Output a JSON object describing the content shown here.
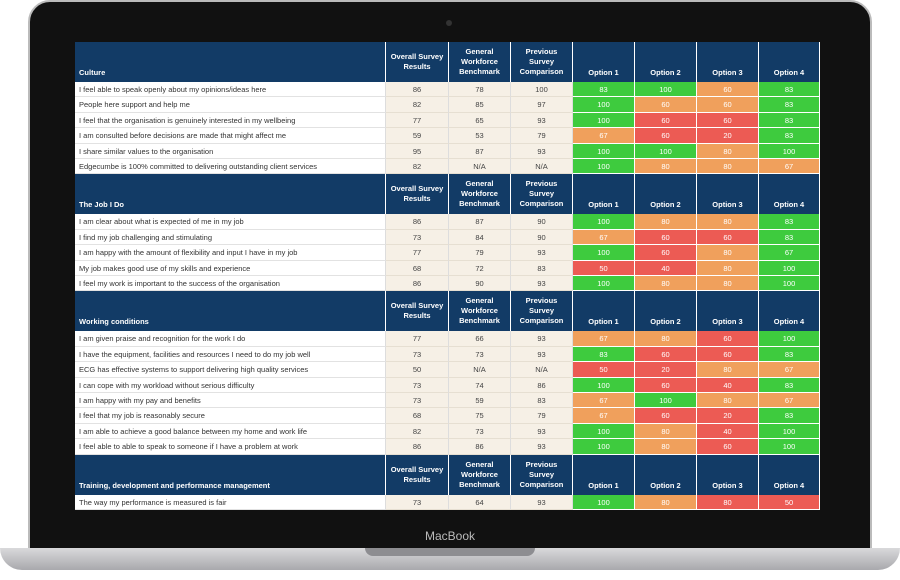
{
  "device_label": "MacBook",
  "column_headers": [
    "Overall Survey Results",
    "General Workforce Benchmark",
    "Previous Survey Comparison",
    "Option 1",
    "Option 2",
    "Option 3",
    "Option 4"
  ],
  "sections": [
    {
      "title": "Culture",
      "rows": [
        {
          "question": "I feel able to speak openly about my opinions/ideas here",
          "scores": [
            86,
            78,
            100
          ],
          "options": [
            83,
            100,
            60,
            83
          ],
          "option_colors": [
            "#3ecb3e",
            "#3ecb3e",
            "#f0a05c",
            "#3ecb3e"
          ]
        },
        {
          "question": "People here support and help me",
          "scores": [
            82,
            85,
            97
          ],
          "options": [
            100,
            60,
            60,
            83
          ],
          "option_colors": [
            "#3ecb3e",
            "#f0a05c",
            "#f0a05c",
            "#3ecb3e"
          ]
        },
        {
          "question": "I feel that the organisation is genuinely interested in my wellbeing",
          "scores": [
            77,
            65,
            93
          ],
          "options": [
            100,
            60,
            60,
            83
          ],
          "option_colors": [
            "#3ecb3e",
            "#ec5b54",
            "#ec5b54",
            "#3ecb3e"
          ]
        },
        {
          "question": "I am consulted before decisions are made that might affect me",
          "scores": [
            59,
            53,
            79
          ],
          "options": [
            67,
            60,
            20,
            83
          ],
          "option_colors": [
            "#f0a05c",
            "#ec5b54",
            "#ec5b54",
            "#3ecb3e"
          ]
        },
        {
          "question": "I share similar values to the organisation",
          "scores": [
            95,
            87,
            93
          ],
          "options": [
            100,
            100,
            80,
            100
          ],
          "option_colors": [
            "#3ecb3e",
            "#3ecb3e",
            "#f0a05c",
            "#3ecb3e"
          ]
        },
        {
          "question": "Edgecumbe is 100% committed to delivering outstanding client services",
          "scores": [
            82,
            "N/A",
            "N/A"
          ],
          "options": [
            100,
            80,
            80,
            67
          ],
          "option_colors": [
            "#3ecb3e",
            "#f0a05c",
            "#f0a05c",
            "#f0a05c"
          ]
        }
      ]
    },
    {
      "title": "The Job I Do",
      "rows": [
        {
          "question": "I am clear about what is expected of me in my job",
          "scores": [
            86,
            87,
            90
          ],
          "options": [
            100,
            80,
            80,
            83
          ],
          "option_colors": [
            "#3ecb3e",
            "#f0a05c",
            "#f0a05c",
            "#3ecb3e"
          ]
        },
        {
          "question": "I find my job challenging and stimulating",
          "scores": [
            73,
            84,
            90
          ],
          "options": [
            67,
            60,
            60,
            83
          ],
          "option_colors": [
            "#f0a05c",
            "#ec5b54",
            "#ec5b54",
            "#3ecb3e"
          ]
        },
        {
          "question": "I am happy with the amount of flexibility and input I have in my job",
          "scores": [
            77,
            79,
            93
          ],
          "options": [
            100,
            60,
            80,
            67
          ],
          "option_colors": [
            "#3ecb3e",
            "#ec5b54",
            "#f0a05c",
            "#3ecb3e"
          ]
        },
        {
          "question": "My job makes good use of my skills and experience",
          "scores": [
            68,
            72,
            83
          ],
          "options": [
            50,
            40,
            80,
            100
          ],
          "option_colors": [
            "#ec5b54",
            "#ec5b54",
            "#f0a05c",
            "#3ecb3e"
          ]
        },
        {
          "question": "I feel my work is important to the success of the organisation",
          "scores": [
            86,
            90,
            93
          ],
          "options": [
            100,
            80,
            80,
            100
          ],
          "option_colors": [
            "#3ecb3e",
            "#f0a05c",
            "#f0a05c",
            "#3ecb3e"
          ]
        }
      ]
    },
    {
      "title": "Working conditions",
      "rows": [
        {
          "question": "I am given praise and recognition for the work I do",
          "scores": [
            77,
            66,
            93
          ],
          "options": [
            67,
            80,
            60,
            100
          ],
          "option_colors": [
            "#f0a05c",
            "#f0a05c",
            "#ec5b54",
            "#3ecb3e"
          ]
        },
        {
          "question": "I have the equipment, facilities and resources I need to do my job well",
          "scores": [
            73,
            73,
            93
          ],
          "options": [
            83,
            60,
            60,
            83
          ],
          "option_colors": [
            "#3ecb3e",
            "#ec5b54",
            "#ec5b54",
            "#3ecb3e"
          ]
        },
        {
          "question": "ECG has effective systems to support delivering high quality services",
          "scores": [
            50,
            "N/A",
            "N/A"
          ],
          "options": [
            50,
            20,
            80,
            67
          ],
          "option_colors": [
            "#ec5b54",
            "#ec5b54",
            "#f0a05c",
            "#f0a05c"
          ]
        },
        {
          "question": "I can cope with my workload without serious difficulty",
          "scores": [
            73,
            74,
            86
          ],
          "options": [
            100,
            60,
            40,
            83
          ],
          "option_colors": [
            "#3ecb3e",
            "#ec5b54",
            "#ec5b54",
            "#3ecb3e"
          ]
        },
        {
          "question": "I am happy with my pay and benefits",
          "scores": [
            73,
            59,
            83
          ],
          "options": [
            67,
            100,
            80,
            67
          ],
          "option_colors": [
            "#f0a05c",
            "#3ecb3e",
            "#f0a05c",
            "#f0a05c"
          ]
        },
        {
          "question": "I feel that my job is reasonably secure",
          "scores": [
            68,
            75,
            79
          ],
          "options": [
            67,
            60,
            20,
            83
          ],
          "option_colors": [
            "#f0a05c",
            "#ec5b54",
            "#ec5b54",
            "#3ecb3e"
          ]
        },
        {
          "question": "I am able to achieve a good balance between my home and work life",
          "scores": [
            82,
            73,
            93
          ],
          "options": [
            100,
            80,
            40,
            100
          ],
          "option_colors": [
            "#3ecb3e",
            "#f0a05c",
            "#ec5b54",
            "#3ecb3e"
          ]
        },
        {
          "question": "I feel able to able to speak to someone if I have a problem at work",
          "scores": [
            86,
            86,
            93
          ],
          "options": [
            100,
            80,
            60,
            100
          ],
          "option_colors": [
            "#3ecb3e",
            "#f0a05c",
            "#ec5b54",
            "#3ecb3e"
          ]
        }
      ]
    },
    {
      "title": "Training, development and performance management",
      "rows": [
        {
          "question": "The way my performance is measured is fair",
          "scores": [
            73,
            64,
            93
          ],
          "options": [
            100,
            80,
            80,
            50
          ],
          "option_colors": [
            "#3ecb3e",
            "#f0a05c",
            "#ec5b54",
            "#ec5b54"
          ]
        }
      ]
    }
  ]
}
